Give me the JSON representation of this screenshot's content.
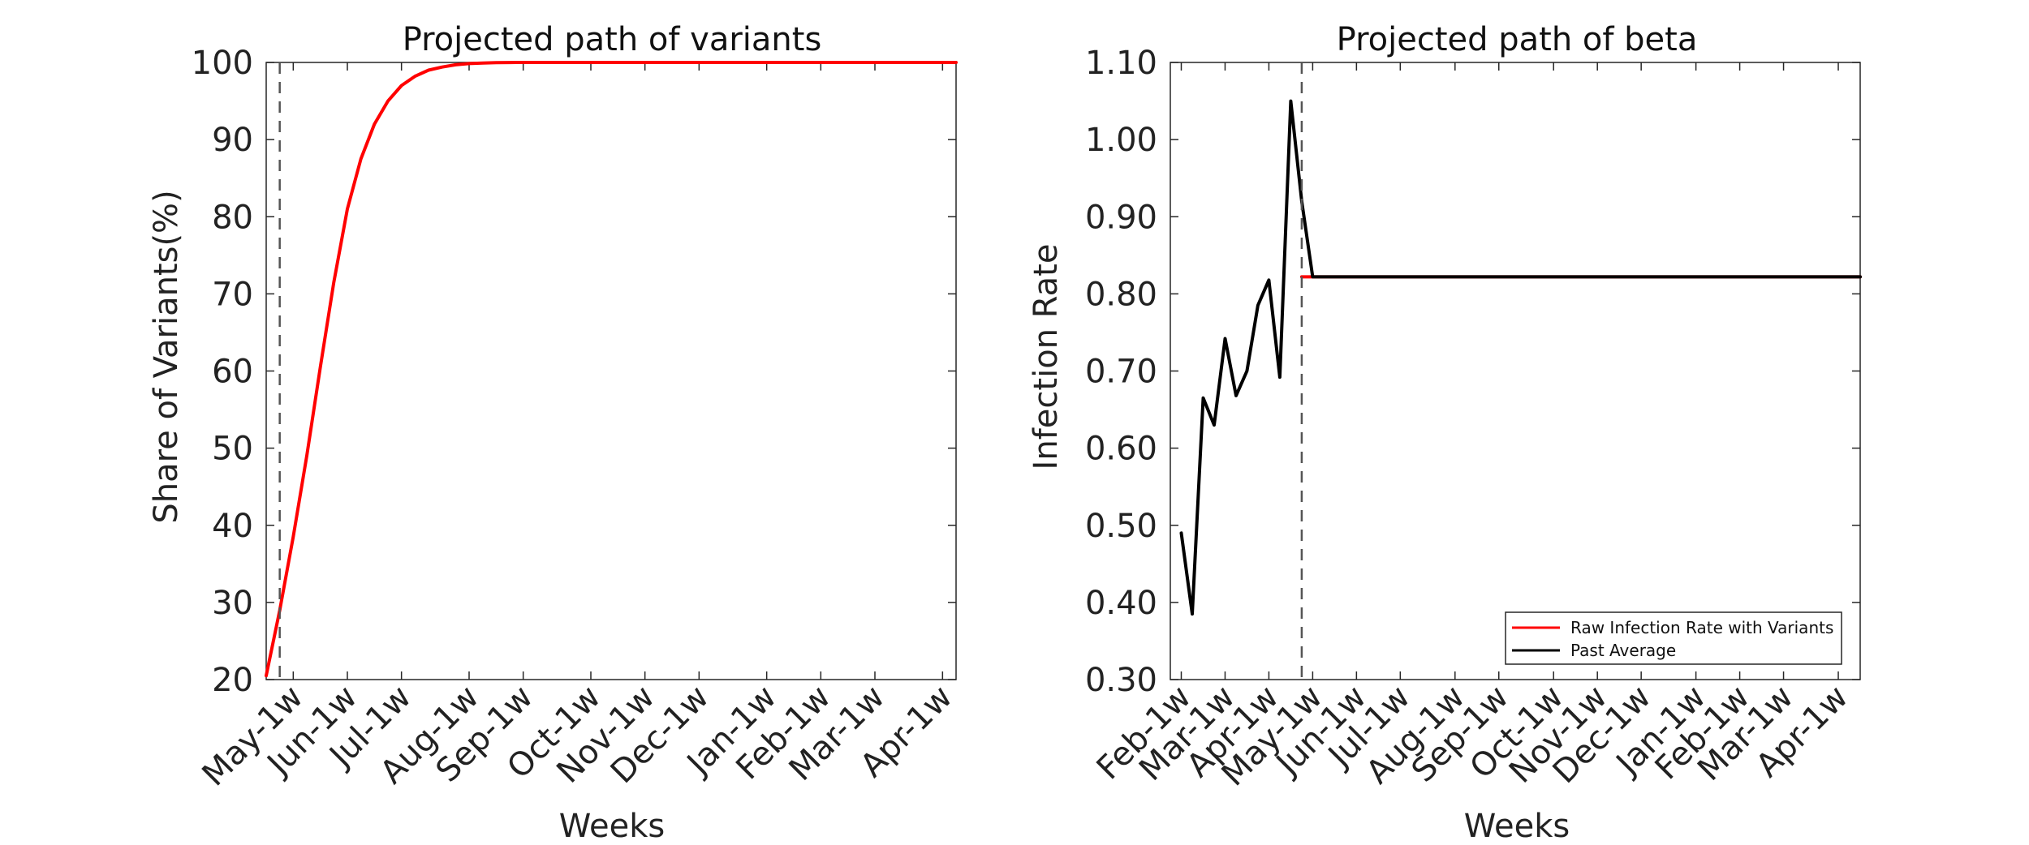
{
  "figure": {
    "background": "#ffffff",
    "axis_color": "#262626",
    "marker_color": "#555555"
  },
  "chart_data": [
    {
      "type": "line",
      "title": "Projected path of variants",
      "xlabel": "Weeks",
      "ylabel": "Share of Variants(%)",
      "x_unit": "week index",
      "xlim": [
        0,
        51
      ],
      "ylim": [
        20,
        100
      ],
      "yticks": [
        20,
        30,
        40,
        50,
        60,
        70,
        80,
        90,
        100
      ],
      "ytick_labels": [
        "20",
        "30",
        "40",
        "50",
        "60",
        "70",
        "80",
        "90",
        "100"
      ],
      "xticks": [
        {
          "x": 2,
          "label": "May-1w"
        },
        {
          "x": 6,
          "label": "Jun-1w"
        },
        {
          "x": 10,
          "label": "Jul-1w"
        },
        {
          "x": 15,
          "label": "Aug-1w"
        },
        {
          "x": 19,
          "label": "Sep-1w"
        },
        {
          "x": 24,
          "label": "Oct-1w"
        },
        {
          "x": 28,
          "label": "Nov-1w"
        },
        {
          "x": 32,
          "label": "Dec-1w"
        },
        {
          "x": 37,
          "label": "Jan-1w"
        },
        {
          "x": 41,
          "label": "Feb-1w"
        },
        {
          "x": 45,
          "label": "Mar-1w"
        },
        {
          "x": 50,
          "label": "Apr-1w"
        }
      ],
      "vline_x": 1,
      "grid": false,
      "series": [
        {
          "color": "#ff0000",
          "x": [
            0,
            1,
            2,
            3,
            4,
            5,
            6,
            7,
            8,
            9,
            10,
            11,
            12,
            13,
            14,
            15,
            16,
            17,
            18,
            19,
            20,
            21,
            22,
            23,
            24,
            25,
            26,
            27,
            28,
            29,
            30,
            31,
            32,
            33,
            34,
            35,
            36,
            37,
            38,
            39,
            40,
            41,
            42,
            43,
            44,
            45,
            46,
            47,
            48,
            49,
            50,
            51
          ],
          "values": [
            20.5,
            29,
            38.5,
            49,
            60.5,
            71.5,
            81,
            87.5,
            92,
            95,
            97,
            98.2,
            99,
            99.4,
            99.7,
            99.85,
            99.93,
            99.97,
            99.99,
            100,
            100,
            100,
            100,
            100,
            100,
            100,
            100,
            100,
            100,
            100,
            100,
            100,
            100,
            100,
            100,
            100,
            100,
            100,
            100,
            100,
            100,
            100,
            100,
            100,
            100,
            100,
            100,
            100,
            100,
            100,
            100,
            100
          ]
        }
      ]
    },
    {
      "type": "line",
      "title": "Projected path of beta",
      "xlabel": "Weeks",
      "ylabel": "Infection Rate",
      "x_unit": "week index",
      "xlim": [
        -1,
        62
      ],
      "ylim": [
        0.3,
        1.1
      ],
      "yticks": [
        0.3,
        0.4,
        0.5,
        0.6,
        0.7,
        0.8,
        0.9,
        1.0,
        1.1
      ],
      "ytick_labels": [
        "0.30",
        "0.40",
        "0.50",
        "0.60",
        "0.70",
        "0.80",
        "0.90",
        "1.00",
        "1.10"
      ],
      "xticks": [
        {
          "x": 0,
          "label": "Feb-1w"
        },
        {
          "x": 4,
          "label": "Mar-1w"
        },
        {
          "x": 8,
          "label": "Apr-1w"
        },
        {
          "x": 12,
          "label": "May-1w"
        },
        {
          "x": 16,
          "label": "Jun-1w"
        },
        {
          "x": 20,
          "label": "Jul-1w"
        },
        {
          "x": 25,
          "label": "Aug-1w"
        },
        {
          "x": 29,
          "label": "Sep-1w"
        },
        {
          "x": 34,
          "label": "Oct-1w"
        },
        {
          "x": 38,
          "label": "Nov-1w"
        },
        {
          "x": 42,
          "label": "Dec-1w"
        },
        {
          "x": 47,
          "label": "Jan-1w"
        },
        {
          "x": 51,
          "label": "Feb-1w"
        },
        {
          "x": 55,
          "label": "Mar-1w"
        },
        {
          "x": 60,
          "label": "Apr-1w"
        }
      ],
      "vline_x": 11,
      "grid": false,
      "legend": {
        "placement": "bottom-right",
        "entries": [
          {
            "label": "Raw Infection Rate with Variants",
            "color": "#ff0000"
          },
          {
            "label": "Past Average",
            "color": "#000000"
          }
        ]
      },
      "series": [
        {
          "name": "Raw Infection Rate with Variants",
          "color": "#ff0000",
          "x": [
            11,
            62
          ],
          "values": [
            0.822,
            0.822
          ]
        },
        {
          "name": "Past Average",
          "color": "#000000",
          "x": [
            0,
            1,
            2,
            3,
            4,
            5,
            6,
            7,
            8,
            9,
            10,
            11,
            12,
            13,
            14,
            15,
            16,
            17,
            18,
            19,
            20,
            21,
            22,
            23,
            24,
            25,
            26,
            27,
            28,
            29,
            30,
            31,
            32,
            33,
            34,
            35,
            36,
            37,
            38,
            39,
            40,
            41,
            42,
            43,
            44,
            45,
            46,
            47,
            48,
            49,
            50,
            51,
            52,
            53,
            54,
            55,
            56,
            57,
            58,
            59,
            60,
            61,
            62
          ],
          "values": [
            0.49,
            0.385,
            0.665,
            0.63,
            0.742,
            0.668,
            0.7,
            0.785,
            0.818,
            0.692,
            1.05,
            0.92,
            0.822,
            0.822,
            0.822,
            0.822,
            0.822,
            0.822,
            0.822,
            0.822,
            0.822,
            0.822,
            0.822,
            0.822,
            0.822,
            0.822,
            0.822,
            0.822,
            0.822,
            0.822,
            0.822,
            0.822,
            0.822,
            0.822,
            0.822,
            0.822,
            0.822,
            0.822,
            0.822,
            0.822,
            0.822,
            0.822,
            0.822,
            0.822,
            0.822,
            0.822,
            0.822,
            0.822,
            0.822,
            0.822,
            0.822,
            0.822,
            0.822,
            0.822,
            0.822,
            0.822,
            0.822,
            0.822,
            0.822,
            0.822,
            0.822,
            0.822,
            0.822
          ]
        }
      ]
    }
  ]
}
